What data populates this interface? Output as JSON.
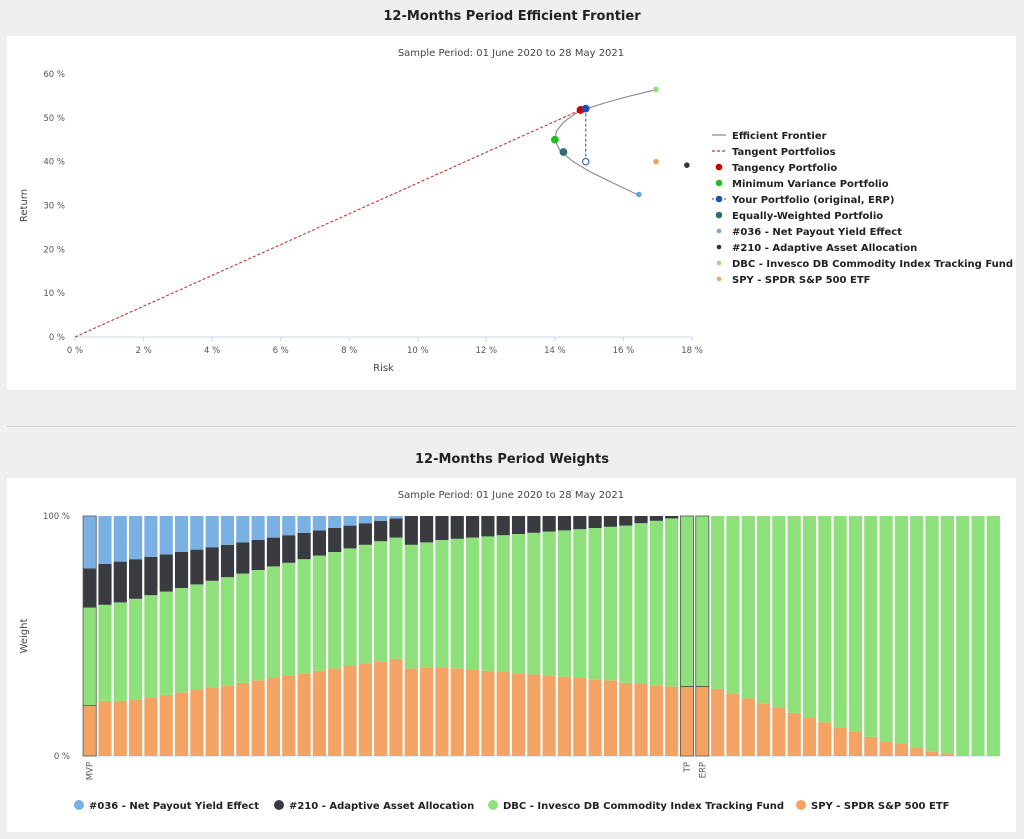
{
  "frontier_section": {
    "title": "12-Months Period Efficient Frontier"
  },
  "weights_section": {
    "title": "12-Months Period Weights"
  },
  "chart_data": [
    {
      "type": "scatter",
      "subtitle": "Sample Period: 01 June 2020 to 28 May 2021",
      "xlabel": "Risk",
      "ylabel": "Return",
      "xlim": [
        0,
        18
      ],
      "ylim": [
        0,
        60
      ],
      "x_ticks": [
        "0 %",
        "2 %",
        "4 %",
        "6 %",
        "8 %",
        "10 %",
        "12 %",
        "14 %",
        "16 %",
        "18 %"
      ],
      "y_ticks": [
        "0 %",
        "10 %",
        "20 %",
        "30 %",
        "40 %",
        "50 %",
        "60 %"
      ],
      "legend_position": "right",
      "series": [
        {
          "name": "Efficient Frontier",
          "kind": "line",
          "color": "#888888",
          "points": [
            [
              16.4,
              32.5
            ],
            [
              15.6,
              35.5
            ],
            [
              15.0,
              37.8
            ],
            [
              14.5,
              40.2
            ],
            [
              14.15,
              42.5
            ],
            [
              14.0,
              45.0
            ],
            [
              14.05,
              47.0
            ],
            [
              14.25,
              49.0
            ],
            [
              14.6,
              51.0
            ],
            [
              15.0,
              52.3
            ],
            [
              15.5,
              53.5
            ],
            [
              16.2,
              55.0
            ],
            [
              17.0,
              56.5
            ]
          ]
        },
        {
          "name": "Tangent Portfolios",
          "kind": "dashed-line",
          "color": "#c0392b",
          "points": [
            [
              0,
              0
            ],
            [
              14.8,
              52.0
            ]
          ]
        },
        {
          "name": "Tangency Portfolio",
          "kind": "point",
          "color": "#cc0000",
          "points": [
            [
              14.75,
              51.8
            ]
          ]
        },
        {
          "name": "Minimum Variance Portfolio",
          "kind": "point",
          "color": "#1fbf1f",
          "points": [
            [
              14.0,
              45.0
            ]
          ]
        },
        {
          "name": "Your Portfolio (original, ERP)",
          "kind": "point",
          "color": "#1f4fb0",
          "points": [
            [
              14.9,
              52.1
            ],
            [
              14.9,
              40.0
            ]
          ]
        },
        {
          "name": "Equally-Weighted Portfolio",
          "kind": "point",
          "color": "#2e6e78",
          "points": [
            [
              14.25,
              42.2
            ]
          ]
        },
        {
          "name": "#036 - Net Payout Yield Effect",
          "kind": "point",
          "color": "#6aa5dd",
          "points": [
            [
              16.45,
              32.5
            ]
          ]
        },
        {
          "name": "#210 - Adaptive Asset Allocation",
          "kind": "point",
          "color": "#333333",
          "points": [
            [
              17.85,
              39.2
            ]
          ]
        },
        {
          "name": "DBC - Invesco DB Commodity Index Tracking Fund",
          "kind": "point",
          "color": "#8ee07a",
          "points": [
            [
              16.95,
              56.5
            ]
          ]
        },
        {
          "name": "SPY - SPDR S&P 500 ETF",
          "kind": "point",
          "color": "#f0a060",
          "points": [
            [
              16.95,
              40.0
            ]
          ]
        }
      ]
    },
    {
      "type": "bar",
      "stacked": true,
      "subtitle": "Sample Period: 01 June 2020 to 28 May 2021",
      "ylabel": "Weight",
      "ylim": [
        0,
        100
      ],
      "y_ticks": [
        "0 %",
        "100 %"
      ],
      "legend_position": "bottom",
      "category_labels": {
        "0": "MVP",
        "39": "TP",
        "40": "ERP"
      },
      "series": [
        {
          "name": "#036 - Net Payout Yield Effect",
          "color": "#7ab0e3",
          "values": [
            22,
            20,
            19,
            18,
            17,
            16,
            15,
            14,
            13,
            12,
            11,
            10,
            9,
            8,
            7,
            6,
            5,
            4,
            3,
            2,
            1,
            0,
            0,
            0,
            0,
            0,
            0,
            0,
            0,
            0,
            0,
            0,
            0,
            0,
            0,
            0,
            0,
            0,
            0,
            0,
            0,
            0,
            0,
            0,
            0,
            0,
            0,
            0,
            0,
            0,
            0,
            0,
            0,
            0,
            0,
            0,
            0,
            0,
            0,
            0
          ]
        },
        {
          "name": "#210 - Adaptive Asset Allocation",
          "color": "#3a3b40",
          "values": [
            16,
            17,
            17,
            16.5,
            16,
            15.5,
            15,
            14.5,
            14,
            13.5,
            13,
            12.5,
            12,
            11.5,
            11,
            10.5,
            10,
            9.5,
            9,
            8.5,
            8,
            12,
            11,
            10,
            9.5,
            9,
            8.5,
            8,
            7.5,
            7,
            6.5,
            6,
            5.5,
            5,
            4.5,
            4,
            3,
            2,
            1,
            0,
            0,
            0,
            0,
            0,
            0,
            0,
            0,
            0,
            0,
            0,
            0,
            0,
            0,
            0,
            0,
            0,
            0,
            0,
            0,
            0
          ]
        },
        {
          "name": "DBC - Invesco DB Commodity Index Tracking Fund",
          "color": "#8ee07a",
          "values": [
            41,
            40,
            41,
            42,
            42.5,
            43,
            43.5,
            44,
            44.5,
            45,
            45.5,
            46,
            46.5,
            47,
            47.5,
            48,
            48.5,
            49,
            49.5,
            50,
            50.5,
            51.5,
            52,
            53,
            54,
            55,
            56,
            57,
            58,
            59,
            60,
            61,
            62,
            63,
            64,
            65.5,
            67,
            68.5,
            70,
            71,
            71,
            72,
            74,
            76,
            78,
            80,
            82,
            84,
            86,
            88,
            90,
            92,
            94,
            95,
            96.5,
            98,
            99,
            100,
            100,
            100
          ]
        },
        {
          "name": "SPY - SPDR S&P 500 ETF",
          "color": "#f3a465",
          "values": [
            21,
            23,
            23,
            23.5,
            24.5,
            25.5,
            26.5,
            27.5,
            28.5,
            29.5,
            30.5,
            31.5,
            32.5,
            33.5,
            34.5,
            35.5,
            36.5,
            37.5,
            38.5,
            39.5,
            40.5,
            36.5,
            37,
            37,
            36.5,
            36,
            35.5,
            35,
            34.5,
            34,
            33.5,
            33,
            32.5,
            32,
            31.5,
            30.5,
            30,
            29.5,
            29,
            29,
            29,
            28,
            26,
            24,
            22,
            20,
            18,
            16,
            14,
            12,
            10,
            8,
            6,
            5,
            3.5,
            2,
            1,
            0,
            0,
            0
          ]
        }
      ]
    }
  ]
}
